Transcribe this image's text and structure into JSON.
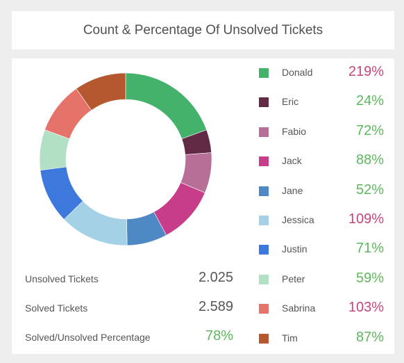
{
  "header": {
    "title": "Count & Percentage Of Unsolved Tickets"
  },
  "stats": [
    {
      "label": "Unsolved Tickets",
      "value": "2.025"
    },
    {
      "label": "Solved Tickets",
      "value": "2.589"
    },
    {
      "label": "Solved/Unsolved Percentage",
      "value": "78%"
    }
  ],
  "colors": {
    "pct_high": "#c5457f",
    "pct_normal": "#5cb85c"
  },
  "chart_data": {
    "type": "pie",
    "categories": [
      "Donald",
      "Eric",
      "Fabio",
      "Jack",
      "Jane",
      "Jessica",
      "Justin",
      "Peter",
      "Sabrina",
      "Tim"
    ],
    "values": [
      18.0,
      4.0,
      7.0,
      10.0,
      7.0,
      12.0,
      9.5,
      7.0,
      9.0,
      9.0
    ],
    "percentages": [
      "219%",
      "24%",
      "72%",
      "88%",
      "52%",
      "109%",
      "71%",
      "59%",
      "103%",
      "87%"
    ],
    "colors": [
      "#44b26b",
      "#632a46",
      "#b86f97",
      "#c73d89",
      "#4e89c6",
      "#a5d1e6",
      "#3d78dc",
      "#b2e0c5",
      "#e6736a",
      "#b5572f"
    ],
    "pct_colors": [
      "#c5457f",
      "#5cb85c",
      "#5cb85c",
      "#5cb85c",
      "#5cb85c",
      "#c5457f",
      "#5cb85c",
      "#5cb85c",
      "#c5457f",
      "#5cb85c"
    ],
    "legend_position": "right"
  }
}
